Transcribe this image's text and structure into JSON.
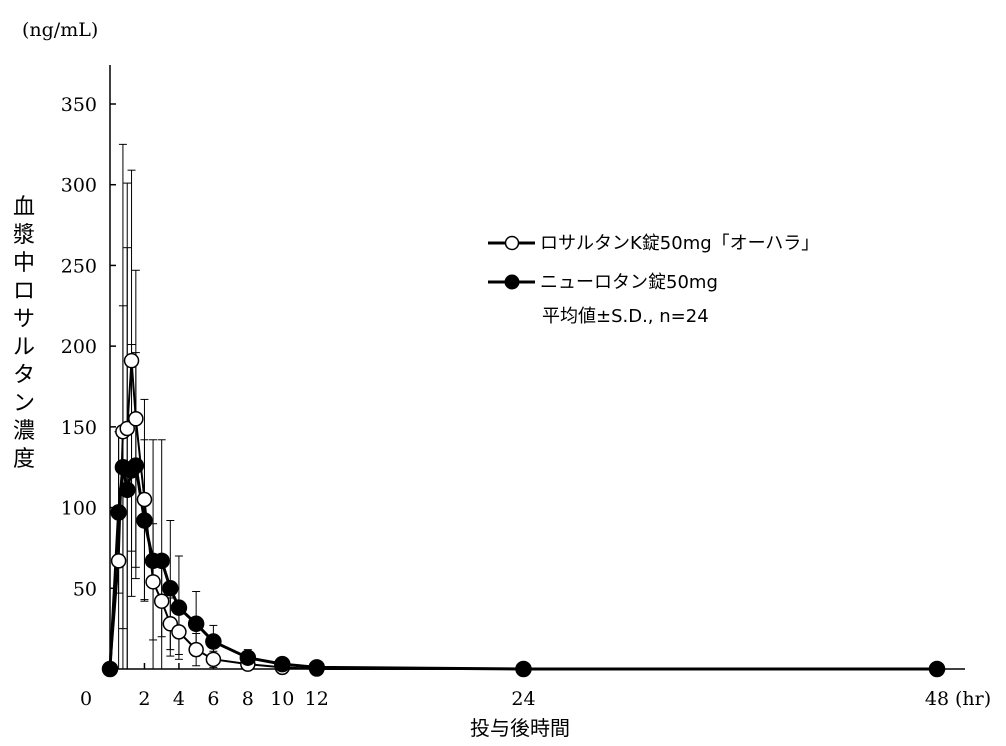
{
  "chart_data": {
    "type": "line",
    "y_unit": "(ng/mL)",
    "x_unit": "(hr)",
    "xlabel": "投与後時間",
    "ylabel": "血漿中ロサルタン濃度",
    "xlim": [
      0,
      48
    ],
    "ylim": [
      0,
      350
    ],
    "x_ticks": [
      0,
      2,
      4,
      6,
      8,
      10,
      12,
      24,
      48
    ],
    "y_ticks": [
      50,
      100,
      150,
      200,
      250,
      300,
      350
    ],
    "grid": false,
    "legend_position": "right",
    "note": "平均値±S.D., n=24",
    "series": [
      {
        "name": "ロサルタンK錠50mg「オーハラ」",
        "marker": "open-circle",
        "color": "#000000",
        "x": [
          0,
          0.5,
          0.75,
          1,
          1.25,
          1.5,
          2,
          2.5,
          3,
          3.5,
          4,
          5,
          6,
          8,
          10,
          12,
          24,
          48
        ],
        "y": [
          0,
          67,
          147,
          149,
          191,
          155,
          105,
          54,
          42,
          28,
          23,
          12,
          6,
          3,
          1,
          0,
          0,
          0
        ],
        "sd": [
          0,
          80,
          178,
          152,
          118,
          92,
          62,
          36,
          22,
          16,
          14,
          10,
          5,
          3,
          1,
          0,
          0,
          0
        ]
      },
      {
        "name": "ニューロタン錠50mg",
        "marker": "filled-circle",
        "color": "#000000",
        "x": [
          0,
          0.5,
          0.75,
          1,
          1.25,
          1.5,
          2,
          2.5,
          3,
          3.5,
          4,
          5,
          6,
          8,
          10,
          12,
          24,
          48
        ],
        "y": [
          0,
          97,
          125,
          111,
          123,
          126,
          92,
          67,
          67,
          50,
          38,
          28,
          17,
          7,
          3,
          1,
          0,
          0
        ],
        "sd": [
          0,
          50,
          100,
          150,
          78,
          70,
          50,
          75,
          75,
          42,
          32,
          20,
          10,
          5,
          2,
          1,
          0,
          0
        ]
      }
    ]
  }
}
